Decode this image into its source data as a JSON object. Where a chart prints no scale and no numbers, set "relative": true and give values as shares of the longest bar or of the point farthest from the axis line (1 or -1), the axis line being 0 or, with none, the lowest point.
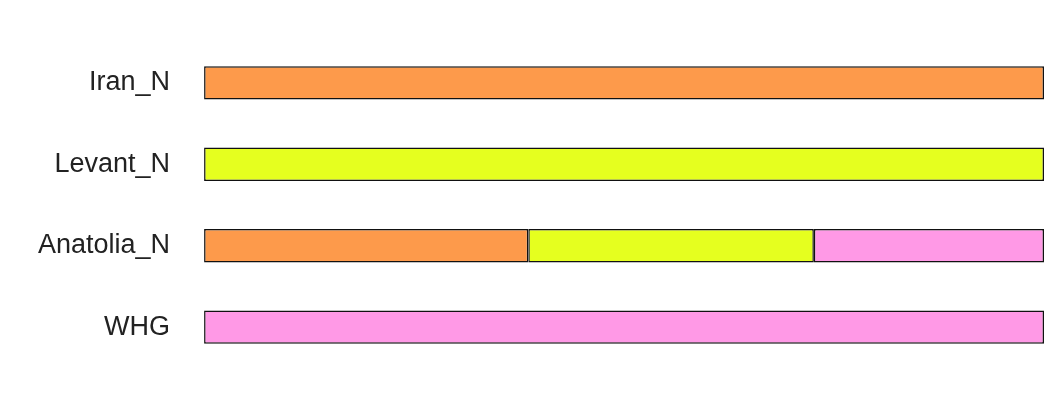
{
  "chart_data": {
    "type": "bar",
    "orientation": "horizontal",
    "stacked": true,
    "relative": true,
    "categories": [
      "Iran_N",
      "Levant_N",
      "Anatolia_N",
      "WHG"
    ],
    "series": [
      {
        "color": "#fd9a4b",
        "values": [
          1,
          null,
          0.386,
          null
        ]
      },
      {
        "color": "#e5ff1f",
        "values": [
          null,
          1,
          0.34,
          null
        ]
      },
      {
        "color": "#ff99e6",
        "values": [
          null,
          null,
          0.274,
          1
        ]
      }
    ]
  }
}
